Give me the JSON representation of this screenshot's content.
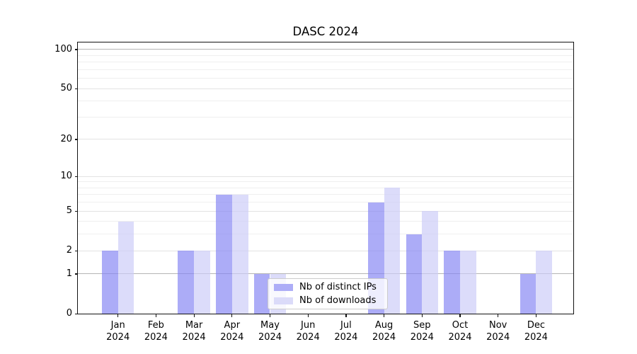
{
  "title": "DASC 2024",
  "chart_data": {
    "type": "bar",
    "title": "DASC 2024",
    "xlabel": "",
    "ylabel": "",
    "yscale": "log1p",
    "ylim": [
      0,
      113
    ],
    "grid": true,
    "legend_position": "lower center (inside plot)",
    "categories": [
      "Jan 2024",
      "Feb 2024",
      "Mar 2024",
      "Apr 2024",
      "May 2024",
      "Jun 2024",
      "Jul 2024",
      "Aug 2024",
      "Sep 2024",
      "Oct 2024",
      "Nov 2024",
      "Dec 2024"
    ],
    "x_tick_months": [
      "Jan",
      "Feb",
      "Mar",
      "Apr",
      "May",
      "Jun",
      "Jul",
      "Aug",
      "Sep",
      "Oct",
      "Nov",
      "Dec"
    ],
    "x_tick_year": "2024",
    "y_major_ticks": [
      0,
      1,
      2,
      5,
      10,
      20,
      50,
      100
    ],
    "y_emphasized_gridlines": [
      1,
      100
    ],
    "y_minor_gridlines": [
      3,
      4,
      6,
      7,
      8,
      9,
      30,
      40,
      60,
      70,
      80,
      90
    ],
    "series": [
      {
        "name": "Nb of distinct IPs",
        "color": "rgba(133,133,243,0.68)",
        "swatch_color": "#adadf7",
        "values": [
          2,
          0,
          2,
          7,
          1,
          0,
          0,
          6,
          3,
          2,
          0,
          1
        ]
      },
      {
        "name": "Nb of downloads",
        "color": "rgba(203,203,247,0.68)",
        "swatch_color": "#dbdbf9",
        "values": [
          4,
          0,
          2,
          7,
          1,
          0,
          0,
          8,
          5,
          2,
          0,
          2
        ]
      }
    ]
  },
  "colors": {
    "background": "#ffffff",
    "spine": "#121212",
    "grid_emphasis": "#b5b5b5",
    "grid_major": "#e3e3e3",
    "grid_minor": "#efefef",
    "text": "#000000",
    "legend_border": "#cccccc"
  }
}
